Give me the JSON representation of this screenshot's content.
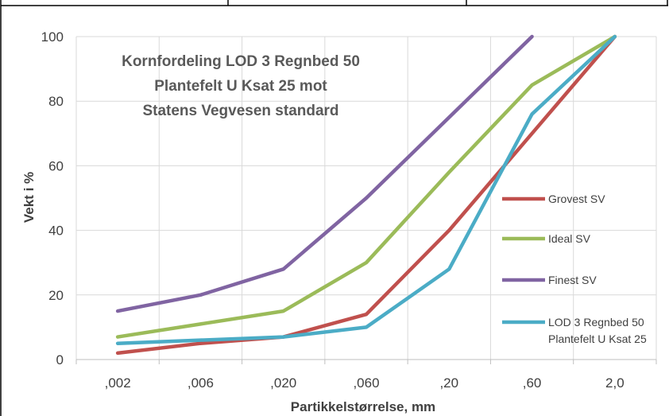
{
  "chart_data": {
    "type": "line",
    "title_lines": [
      "Kornfordeling LOD 3 Regnbed 50",
      "Plantefelt U Ksat 25 mot",
      "Statens Vegvesen standard"
    ],
    "xlabel": "Partikkelstørrelse, mm",
    "ylabel": "Vekt i %",
    "categories": [
      ",002",
      ",006",
      ",020",
      ",060",
      ",20",
      ",60",
      "2,0"
    ],
    "ylim": [
      0,
      100
    ],
    "yticks": [
      0,
      20,
      40,
      60,
      80,
      100
    ],
    "grid": true,
    "legend_position": "right",
    "series": [
      {
        "name": "Grovest SV",
        "color": "#C0504D",
        "values": [
          2,
          5,
          7,
          14,
          40,
          70,
          100
        ]
      },
      {
        "name": "Ideal SV",
        "color": "#9BBB59",
        "values": [
          7,
          11,
          15,
          30,
          58,
          85,
          100
        ]
      },
      {
        "name": "Finest SV",
        "color": "#8064A2",
        "values": [
          15,
          20,
          28,
          50,
          75,
          100,
          null
        ]
      },
      {
        "name": "LOD 3 Regnbed 50 Plantefelt U Ksat 25",
        "name_lines": [
          "LOD 3 Regnbed 50",
          "Plantefelt U Ksat 25"
        ],
        "color": "#4BACC6",
        "values": [
          5,
          6,
          7,
          10,
          28,
          76,
          100
        ]
      }
    ]
  }
}
